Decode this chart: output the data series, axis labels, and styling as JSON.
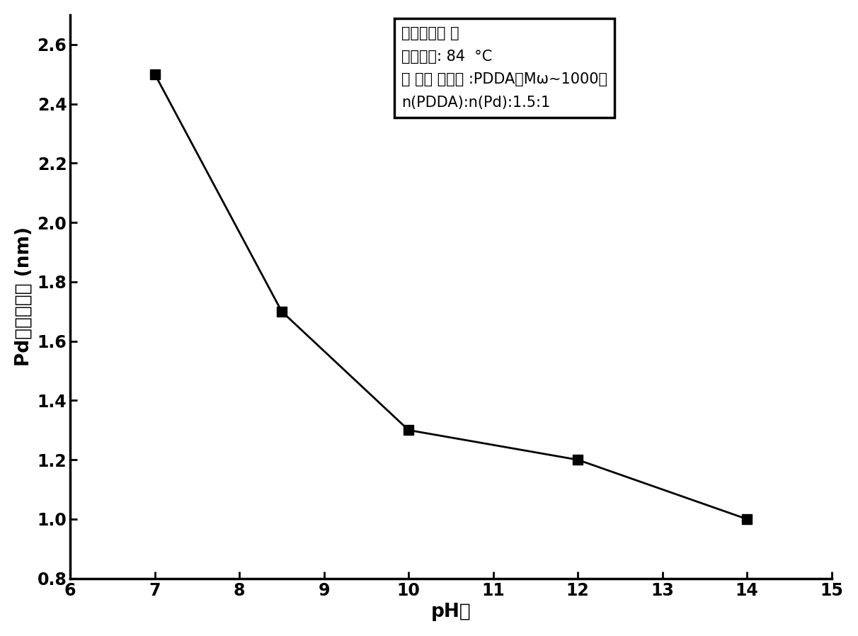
{
  "x": [
    7,
    8.5,
    10,
    12,
    14
  ],
  "y": [
    2.5,
    1.7,
    1.3,
    1.2,
    1.0
  ],
  "xlim": [
    6,
    15
  ],
  "ylim": [
    0.8,
    2.7
  ],
  "xticks": [
    6,
    7,
    8,
    9,
    10,
    11,
    12,
    13,
    14,
    15
  ],
  "yticks": [
    0.8,
    1.0,
    1.2,
    1.4,
    1.6,
    1.8,
    2.0,
    2.2,
    2.4,
    2.6
  ],
  "xlabel": "pH値",
  "ylabel": "Pd颜粒的粒径 (nm)",
  "line_color": "#000000",
  "marker": "s",
  "marker_color": "#000000",
  "marker_size": 10,
  "line_width": 2.0,
  "ann_line1": "还原剂：乙 醇",
  "ann_line2": "反应温度: 84  °C",
  "ann_line3": "阳 离子 保护剂 :PDDA（Mω~1000）",
  "ann_line4": "n(PDDA):n(Pd):1.5:1",
  "background_color": "#ffffff",
  "tick_fontsize": 17,
  "label_fontsize": 19,
  "annotation_fontsize": 15
}
